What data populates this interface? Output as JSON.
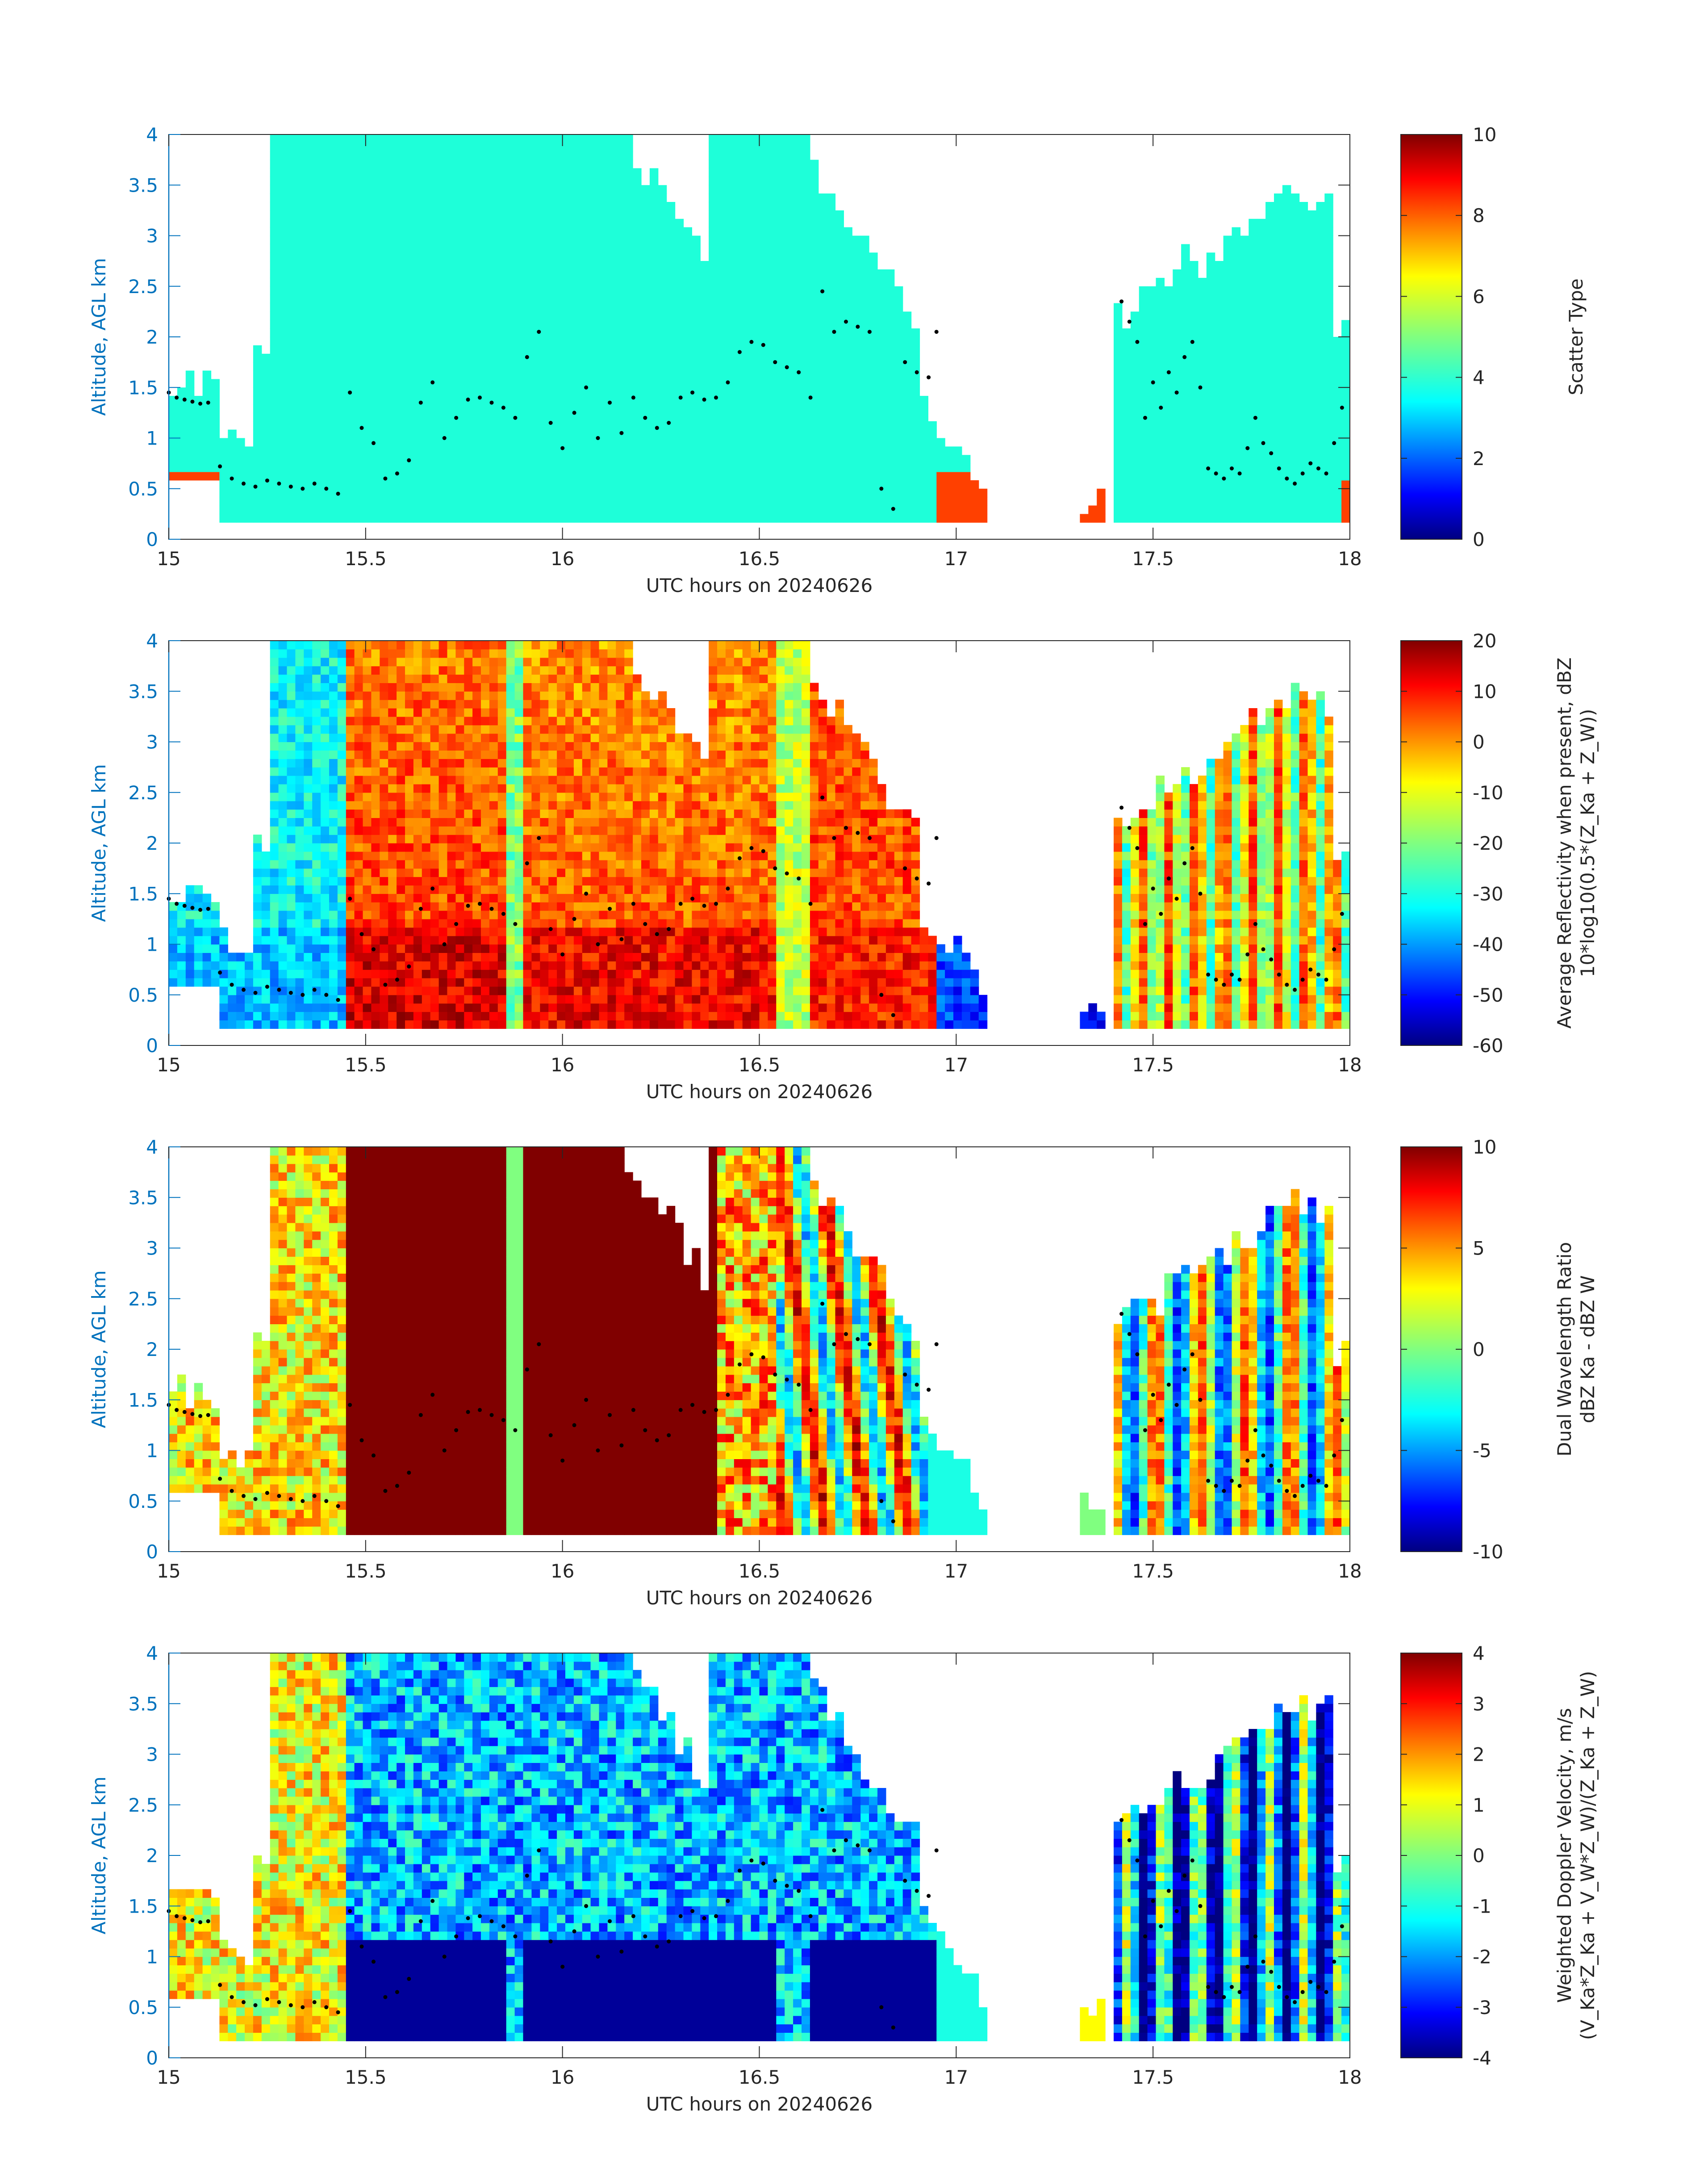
{
  "chart_data": [
    {
      "type": "heatmap",
      "xlabel": "UTC hours on 20240626",
      "ylabel": "Altitude, AGL km",
      "xlim": [
        15,
        18
      ],
      "ylim": [
        0,
        4
      ],
      "xticks": [
        "15",
        "15.5",
        "16",
        "16.5",
        "17",
        "17.5",
        "18"
      ],
      "yticks": [
        "0",
        "0.5",
        "1",
        "1.5",
        "2",
        "2.5",
        "3",
        "3.5",
        "4"
      ],
      "colorbar": {
        "label_lines": [
          "Scatter Type"
        ],
        "range": [
          0,
          10
        ],
        "ticks": [
          "0",
          "2",
          "4",
          "6",
          "8",
          "10"
        ],
        "colormap": "jet"
      },
      "observations": [
        {
          "field": "Scatter Type",
          "dominant_value": 4,
          "dominant_color": "#1effd9"
        },
        {
          "field": "Scatter Type",
          "secondary_value": 9,
          "secondary_color": "#ff4000"
        }
      ]
    },
    {
      "type": "heatmap",
      "xlabel": "UTC hours on 20240626",
      "ylabel": "Altitude, AGL km",
      "xlim": [
        15,
        18
      ],
      "ylim": [
        0,
        4
      ],
      "xticks": [
        "15",
        "15.5",
        "16",
        "16.5",
        "17",
        "17.5",
        "18"
      ],
      "yticks": [
        "0",
        "0.5",
        "1",
        "1.5",
        "2",
        "2.5",
        "3",
        "3.5",
        "4"
      ],
      "colorbar": {
        "label_lines": [
          "Average Reflectivity when present, dBZ",
          "10*log10(0.5*(Z_Ka + Z_W))"
        ],
        "range": [
          -60,
          20
        ],
        "ticks": [
          "-60",
          "-50",
          "-40",
          "-30",
          "-20",
          "-10",
          "0",
          "10",
          "20"
        ],
        "colormap": "jet"
      }
    },
    {
      "type": "heatmap",
      "xlabel": "UTC hours on 20240626",
      "ylabel": "Altitude, AGL km",
      "xlim": [
        15,
        18
      ],
      "ylim": [
        0,
        4
      ],
      "xticks": [
        "15",
        "15.5",
        "16",
        "16.5",
        "17",
        "17.5",
        "18"
      ],
      "yticks": [
        "0",
        "0.5",
        "1",
        "1.5",
        "2",
        "2.5",
        "3",
        "3.5",
        "4"
      ],
      "colorbar": {
        "label_lines": [
          "Dual Wavelength Ratio",
          "dBZ Ka - dBZ W"
        ],
        "range": [
          -10,
          10
        ],
        "ticks": [
          "-10",
          "-5",
          "0",
          "5",
          "10"
        ],
        "colormap": "jet"
      }
    },
    {
      "type": "heatmap",
      "xlabel": "UTC hours on 20240626",
      "ylabel": "Altitude, AGL km",
      "xlim": [
        15,
        18
      ],
      "ylim": [
        0,
        4
      ],
      "xticks": [
        "15",
        "15.5",
        "16",
        "16.5",
        "17",
        "17.5",
        "18"
      ],
      "yticks": [
        "0",
        "0.5",
        "1",
        "1.5",
        "2",
        "2.5",
        "3",
        "3.5",
        "4"
      ],
      "colorbar": {
        "label_lines": [
          "Weighted Doppler Velocity, m/s",
          "(V_Ka*Z_Ka + V_W*Z_W)/(Z_Ka + Z_W)"
        ],
        "range": [
          -4,
          4
        ],
        "ticks": [
          "-4",
          "-3",
          "-2",
          "-1",
          "0",
          "1",
          "2",
          "3",
          "4"
        ],
        "colormap": "jet"
      }
    }
  ],
  "cloud_base_dots": {
    "t": [
      15.0,
      15.02,
      15.04,
      15.06,
      15.08,
      15.1,
      15.13,
      15.16,
      15.19,
      15.22,
      15.25,
      15.28,
      15.31,
      15.34,
      15.37,
      15.4,
      15.43,
      15.46,
      15.49,
      15.52,
      15.55,
      15.58,
      15.61,
      15.64,
      15.67,
      15.7,
      15.73,
      15.76,
      15.79,
      15.82,
      15.85,
      15.88,
      15.91,
      15.94,
      15.97,
      16.0,
      16.03,
      16.06,
      16.09,
      16.12,
      16.15,
      16.18,
      16.21,
      16.24,
      16.27,
      16.3,
      16.33,
      16.36,
      16.39,
      16.42,
      16.45,
      16.48,
      16.51,
      16.54,
      16.57,
      16.6,
      16.63,
      16.66,
      16.69,
      16.72,
      16.75,
      16.78,
      16.81,
      16.84,
      16.87,
      16.9,
      16.93,
      16.95,
      17.42,
      17.44,
      17.46,
      17.48,
      17.5,
      17.52,
      17.54,
      17.56,
      17.58,
      17.6,
      17.62,
      17.64,
      17.66,
      17.68,
      17.7,
      17.72,
      17.74,
      17.76,
      17.78,
      17.8,
      17.82,
      17.84,
      17.86,
      17.88,
      17.9,
      17.92,
      17.94,
      17.96,
      17.98
    ],
    "alt": [
      1.45,
      1.4,
      1.38,
      1.36,
      1.34,
      1.35,
      0.72,
      0.6,
      0.55,
      0.52,
      0.58,
      0.55,
      0.52,
      0.5,
      0.55,
      0.5,
      0.45,
      1.45,
      1.1,
      0.95,
      0.6,
      0.65,
      0.78,
      1.35,
      1.55,
      1.0,
      1.2,
      1.38,
      1.4,
      1.35,
      1.3,
      1.2,
      1.8,
      2.05,
      1.15,
      0.9,
      1.25,
      1.5,
      1.0,
      1.35,
      1.05,
      1.4,
      1.2,
      1.1,
      1.15,
      1.4,
      1.45,
      1.38,
      1.4,
      1.55,
      1.85,
      1.95,
      1.92,
      1.75,
      1.7,
      1.65,
      1.4,
      2.45,
      2.05,
      2.15,
      2.1,
      2.05,
      0.5,
      0.3,
      1.75,
      1.65,
      1.6,
      2.05,
      2.35,
      2.15,
      1.95,
      1.2,
      1.55,
      1.3,
      1.65,
      1.45,
      1.8,
      1.95,
      1.5,
      0.7,
      0.65,
      0.6,
      0.7,
      0.65,
      0.9,
      1.2,
      0.95,
      0.85,
      0.7,
      0.6,
      0.55,
      0.65,
      0.75,
      0.7,
      0.65,
      0.95,
      1.3
    ]
  }
}
